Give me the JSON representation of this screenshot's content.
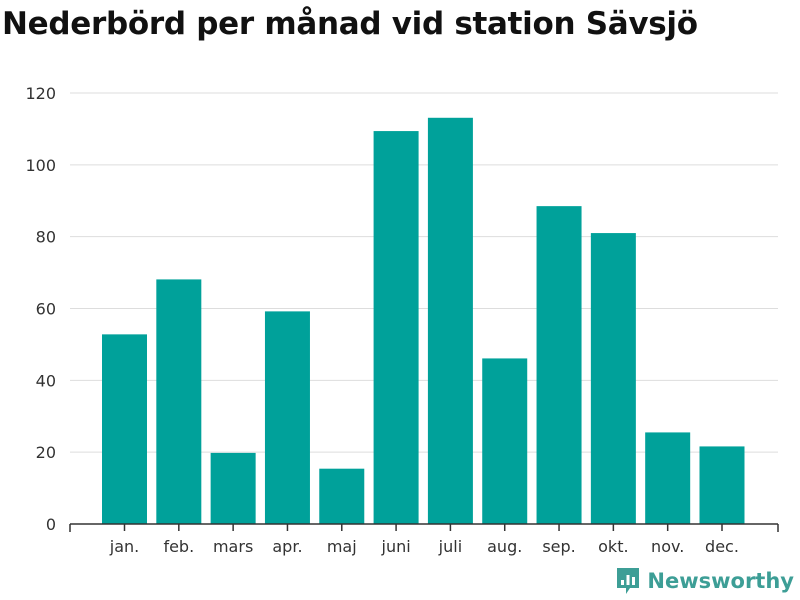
{
  "chart_data": {
    "type": "bar",
    "title": "Nederbörd per månad vid station Sävsjö",
    "xlabel": "",
    "ylabel": "",
    "categories": [
      "jan.",
      "feb.",
      "mars",
      "apr.",
      "maj",
      "juni",
      "juli",
      "aug.",
      "sep.",
      "okt.",
      "nov.",
      "dec."
    ],
    "values": [
      52.8,
      68.1,
      19.8,
      59.2,
      15.4,
      109.4,
      113.1,
      46.1,
      88.5,
      81.0,
      25.5,
      21.6
    ],
    "ylim": [
      0,
      120
    ],
    "yticks": [
      0,
      20,
      40,
      60,
      80,
      100,
      120
    ],
    "grid": true,
    "bar_color": "#00a19a"
  },
  "brand": {
    "name": "Newsworthy",
    "icon": "newsworthy-logo-icon",
    "color": "#3d9e96"
  }
}
